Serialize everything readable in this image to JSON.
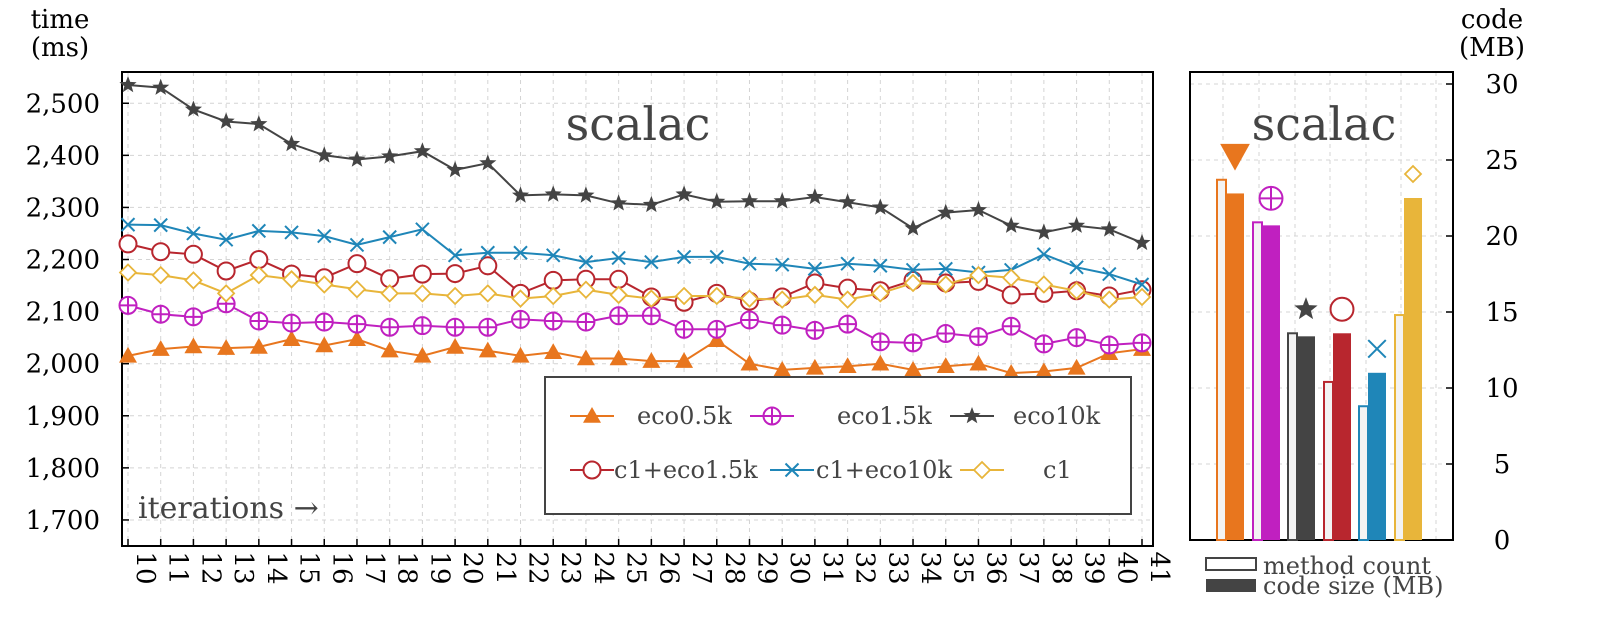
{
  "chart_data": [
    {
      "type": "line",
      "title": "scalac",
      "ylabel_line1": "time",
      "ylabel_line2": "(ms)",
      "xlabel": "iterations →",
      "ylim": [
        1650,
        2560
      ],
      "yticks": [
        1700,
        1800,
        1900,
        2000,
        2100,
        2200,
        2300,
        2400,
        2500
      ],
      "ytick_labels": [
        "1,700",
        "1,800",
        "1,900",
        "2,000",
        "2,100",
        "2,200",
        "2,300",
        "2,400",
        "2,500"
      ],
      "x": [
        10,
        11,
        12,
        13,
        14,
        15,
        16,
        17,
        18,
        19,
        20,
        21,
        22,
        23,
        24,
        25,
        26,
        27,
        28,
        29,
        30,
        31,
        32,
        33,
        34,
        35,
        36,
        37,
        38,
        39,
        40,
        41
      ],
      "grid": true,
      "legend_position": "bottom-right",
      "series": [
        {
          "name": "eco0.5k",
          "color": "#e8761e",
          "marker": "triangle",
          "values": [
            2015,
            2028,
            2033,
            2030,
            2032,
            2047,
            2035,
            2047,
            2025,
            2015,
            2032,
            2025,
            2015,
            2022,
            2010,
            2010,
            2005,
            2005,
            2045,
            2000,
            1988,
            1992,
            1995,
            2000,
            1988,
            1995,
            2000,
            1982,
            1985,
            1992,
            2020,
            2028
          ]
        },
        {
          "name": "eco1.5k",
          "color": "#c020c0",
          "marker": "circle-plus",
          "values": [
            2112,
            2095,
            2090,
            2115,
            2082,
            2078,
            2080,
            2076,
            2070,
            2073,
            2070,
            2070,
            2085,
            2082,
            2080,
            2092,
            2092,
            2066,
            2066,
            2084,
            2074,
            2064,
            2076,
            2042,
            2040,
            2058,
            2052,
            2072,
            2038,
            2050,
            2036,
            2040
          ]
        },
        {
          "name": "eco10k",
          "color": "#444444",
          "marker": "star",
          "values": [
            2535,
            2530,
            2488,
            2465,
            2460,
            2422,
            2400,
            2392,
            2398,
            2408,
            2372,
            2385,
            2323,
            2325,
            2323,
            2308,
            2305,
            2325,
            2311,
            2312,
            2312,
            2320,
            2310,
            2300,
            2260,
            2290,
            2295,
            2265,
            2252,
            2265,
            2258,
            2232
          ]
        },
        {
          "name": "c1+eco1.5k",
          "color": "#b8262e",
          "marker": "circle",
          "values": [
            2230,
            2215,
            2210,
            2178,
            2200,
            2172,
            2165,
            2192,
            2163,
            2172,
            2173,
            2188,
            2135,
            2160,
            2162,
            2162,
            2128,
            2118,
            2135,
            2120,
            2128,
            2155,
            2145,
            2140,
            2160,
            2155,
            2158,
            2132,
            2135,
            2140,
            2130,
            2142
          ]
        },
        {
          "name": "c1+eco10k",
          "color": "#1f86b8",
          "marker": "x",
          "values": [
            2267,
            2266,
            2250,
            2238,
            2255,
            2252,
            2245,
            2228,
            2243,
            2258,
            2208,
            2213,
            2213,
            2208,
            2195,
            2203,
            2195,
            2205,
            2205,
            2192,
            2190,
            2182,
            2192,
            2188,
            2180,
            2182,
            2175,
            2180,
            2210,
            2185,
            2172,
            2152
          ]
        },
        {
          "name": "c1",
          "color": "#e8b53a",
          "marker": "diamond",
          "values": [
            2175,
            2170,
            2160,
            2135,
            2170,
            2162,
            2152,
            2143,
            2135,
            2135,
            2130,
            2135,
            2125,
            2130,
            2142,
            2132,
            2125,
            2130,
            2130,
            2125,
            2123,
            2132,
            2123,
            2135,
            2155,
            2152,
            2170,
            2165,
            2152,
            2140,
            2123,
            2128
          ]
        }
      ]
    },
    {
      "type": "bar",
      "title": "scalac",
      "ylabel_line1": "code",
      "ylabel_line2": "(MB)",
      "ylim": [
        0,
        30
      ],
      "yticks": [
        0,
        5,
        10,
        15,
        20,
        25,
        30
      ],
      "ytick_labels": [
        "0",
        "5",
        "10",
        "15",
        "20",
        "25",
        "30"
      ],
      "series_legend": [
        "method count",
        "code size (MB)"
      ],
      "categories": [
        "eco0.5k",
        "eco1.5k",
        "eco10k",
        "c1+eco1.5k",
        "c1+eco10k",
        "c1"
      ],
      "colors": [
        "#e8761e",
        "#c020c0",
        "#444444",
        "#b8262e",
        "#1f86b8",
        "#e8b53a"
      ],
      "markers": [
        "triangle-down",
        "circle-plus",
        "star",
        "circle",
        "x",
        "diamond"
      ],
      "method_count": [
        23.7,
        20.9,
        13.6,
        10.4,
        8.8,
        14.8
      ],
      "code_size": [
        22.8,
        20.7,
        13.4,
        13.6,
        11.0,
        22.5
      ]
    }
  ]
}
